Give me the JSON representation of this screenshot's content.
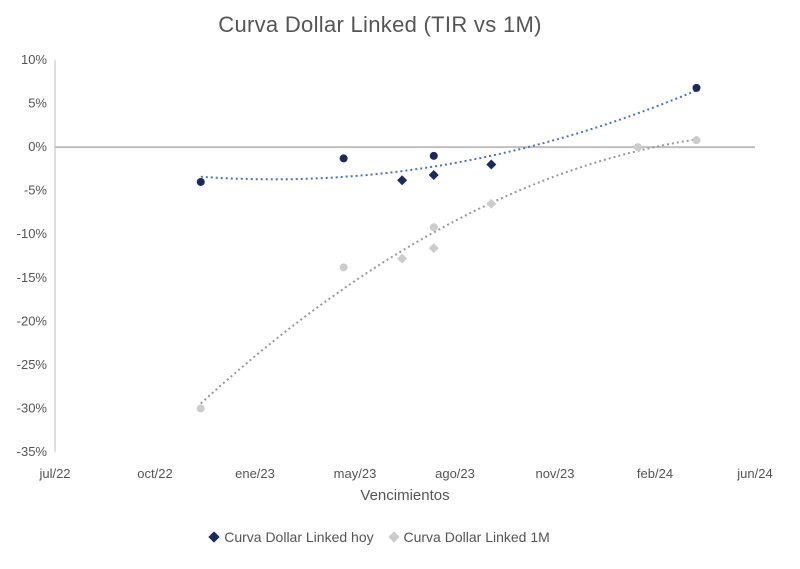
{
  "chart_data": {
    "type": "scatter",
    "title": "Curva Dollar Linked (TIR vs 1M)",
    "xlabel": "Vencimientos",
    "ylabel": "",
    "x_ticks": [
      "jul/22",
      "oct/22",
      "ene/23",
      "may/23",
      "ago/23",
      "nov/23",
      "feb/24",
      "jun/24"
    ],
    "y_ticks": [
      "10%",
      "5%",
      "0%",
      "-5%",
      "-10%",
      "-15%",
      "-20%",
      "-25%",
      "-30%",
      "-35%"
    ],
    "xlim": [
      "2022-07-01",
      "2024-06-30"
    ],
    "ylim": [
      -35,
      10
    ],
    "grid": false,
    "legend_position": "bottom",
    "series": [
      {
        "name": "Curva Dollar Linked hoy",
        "color": "#1b2a5c",
        "trendline_color": "#4a72c4",
        "points": [
          {
            "x": "2022-11-30",
            "y": -4.0,
            "marker": "circle"
          },
          {
            "x": "2023-04-28",
            "y": -1.3,
            "marker": "circle"
          },
          {
            "x": "2023-06-28",
            "y": -3.8,
            "marker": "diamond"
          },
          {
            "x": "2023-07-31",
            "y": -1.0,
            "marker": "circle"
          },
          {
            "x": "2023-07-31",
            "y": -3.2,
            "marker": "diamond"
          },
          {
            "x": "2023-09-29",
            "y": -2.0,
            "marker": "diamond"
          },
          {
            "x": "2024-04-30",
            "y": 6.8,
            "marker": "circle"
          }
        ]
      },
      {
        "name": "Curva Dollar Linked 1M",
        "color": "#cccccc",
        "trendline_color": "#999999",
        "points": [
          {
            "x": "2022-11-30",
            "y": -30.0,
            "marker": "circle"
          },
          {
            "x": "2023-04-28",
            "y": -13.8,
            "marker": "circle"
          },
          {
            "x": "2023-06-28",
            "y": -12.8,
            "marker": "diamond"
          },
          {
            "x": "2023-07-31",
            "y": -9.2,
            "marker": "circle"
          },
          {
            "x": "2023-07-31",
            "y": -11.6,
            "marker": "diamond"
          },
          {
            "x": "2023-09-29",
            "y": -6.5,
            "marker": "diamond"
          },
          {
            "x": "2024-02-29",
            "y": 0.0,
            "marker": "circle"
          },
          {
            "x": "2024-04-30",
            "y": 0.8,
            "marker": "circle"
          }
        ]
      }
    ]
  }
}
